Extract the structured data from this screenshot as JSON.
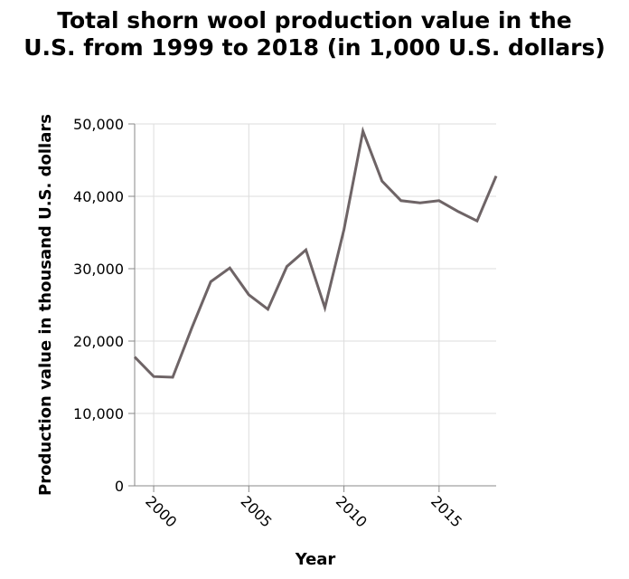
{
  "chart_data": {
    "type": "line",
    "title": [
      "Total shorn wool production value in the",
      "U.S. from 1999 to 2018 (in 1,000 U.S. dollars)"
    ],
    "xlabel": "Year",
    "ylabel": "Production value in thousand U.S. dollars",
    "xlim": [
      1999,
      2018
    ],
    "ylim": [
      0,
      50000
    ],
    "x_ticks": [
      2000,
      2005,
      2010,
      2015
    ],
    "x_tick_labels": [
      "2000",
      "2005",
      "2010",
      "2015"
    ],
    "y_ticks": [
      0,
      10000,
      20000,
      30000,
      40000,
      50000
    ],
    "y_tick_labels": [
      "0",
      "10,000",
      "20,000",
      "30,000",
      "40,000",
      "50,000"
    ],
    "grid": true,
    "line_color": "#6e6466",
    "series": [
      {
        "x": [
          1999,
          2000,
          2001,
          2002,
          2003,
          2004,
          2005,
          2006,
          2007,
          2008,
          2009,
          2010,
          2011,
          2012,
          2013,
          2014,
          2015,
          2016,
          2017,
          2018
        ],
        "values": [
          17800,
          15100,
          15000,
          21800,
          28200,
          30100,
          26400,
          24400,
          30300,
          32600,
          24600,
          35400,
          49000,
          42100,
          39400,
          39100,
          39400,
          37900,
          36600,
          42800
        ]
      }
    ]
  }
}
